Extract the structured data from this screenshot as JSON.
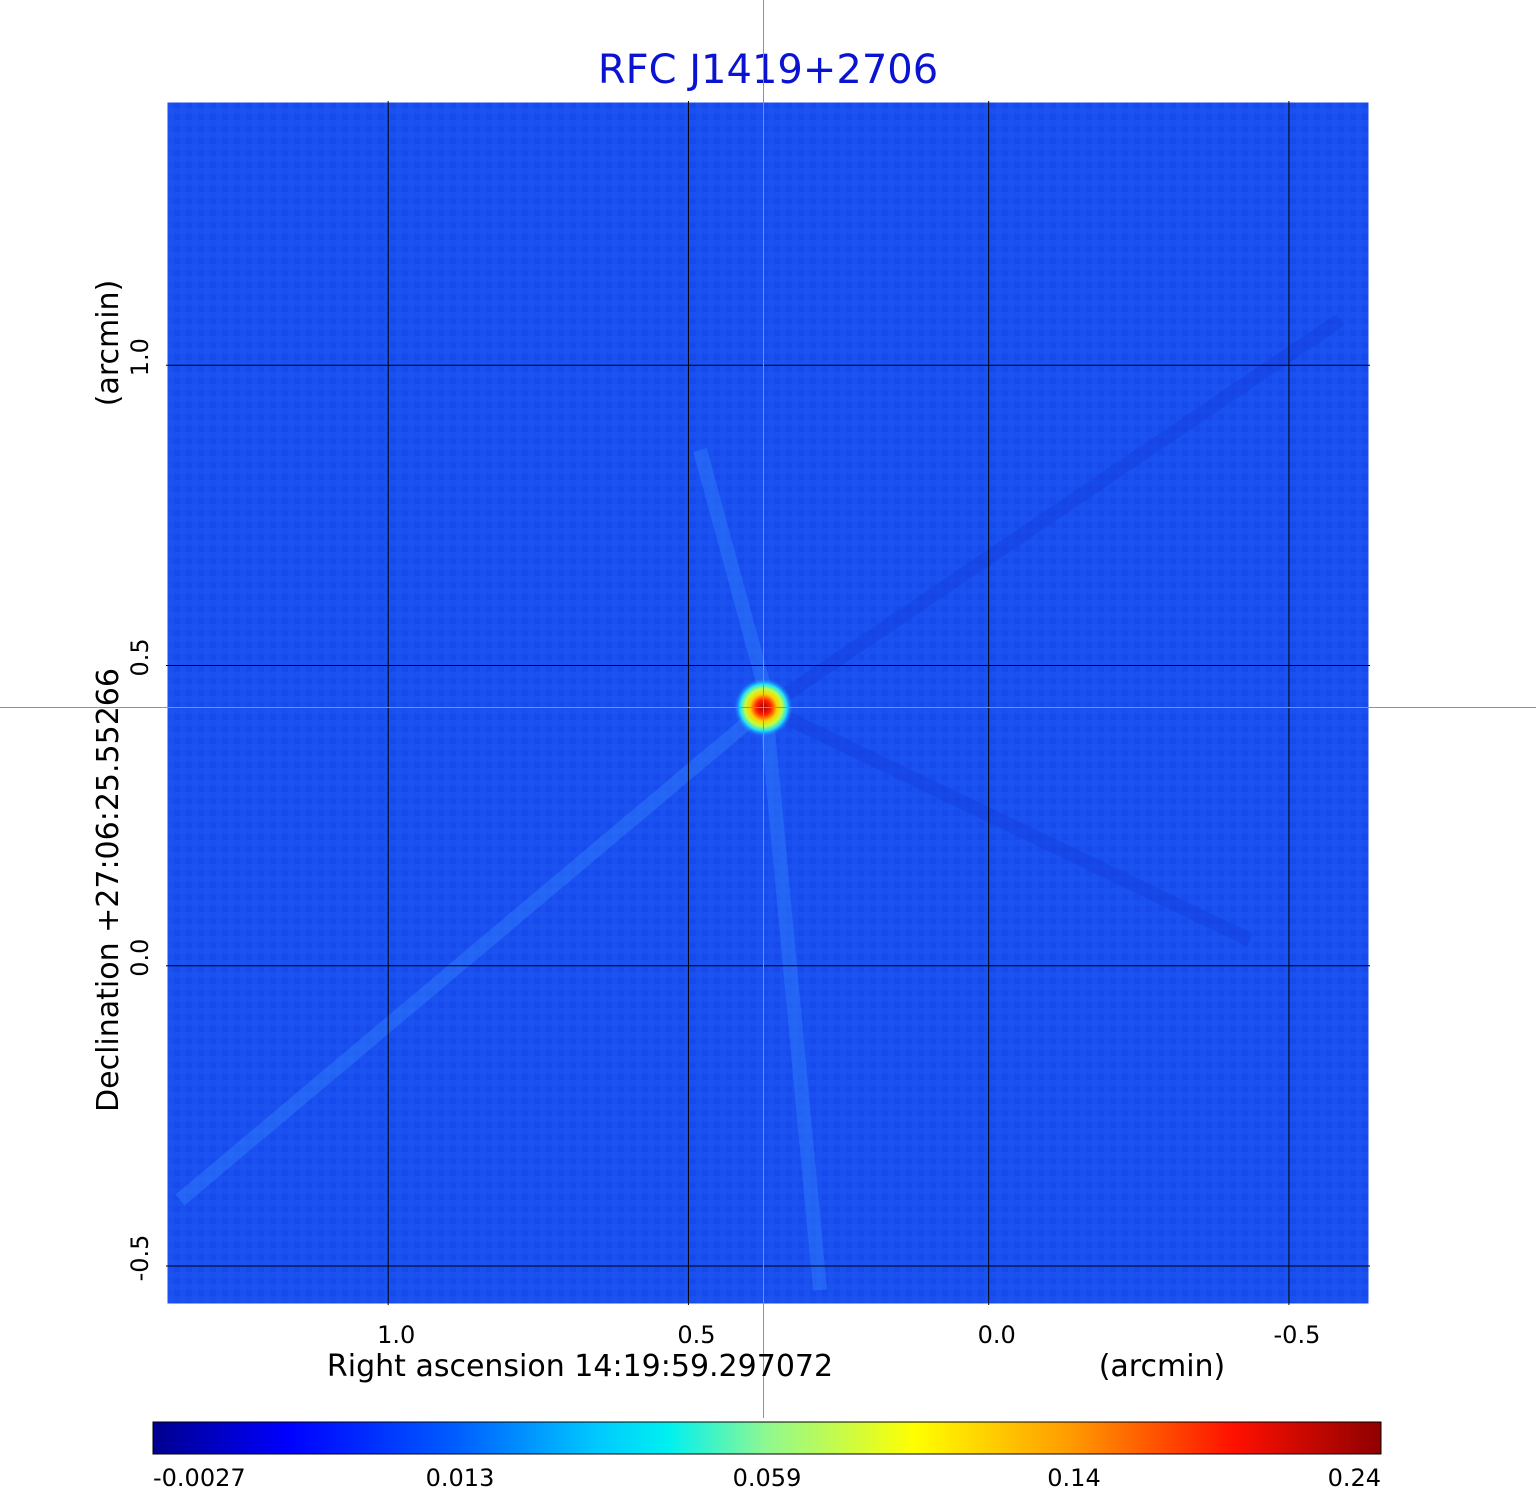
{
  "title": "RFC J1419+2706",
  "x_axis": {
    "label": "Right ascension  14:19:59.297072",
    "unit": "(arcmin)",
    "ticks": [
      "1.0",
      "0.5",
      "0.0",
      "-0.5"
    ],
    "range_arcmin": [
      1.37,
      -0.635
    ]
  },
  "y_axis": {
    "label": "Declination  +27:06:25.55266",
    "unit": "(arcmin)",
    "ticks": [
      "1.0",
      "0.5",
      "0.0",
      "-0.5"
    ],
    "range_arcmin": [
      -0.565,
      1.44
    ]
  },
  "colorbar": {
    "colormap": "jet",
    "ticks": [
      "-0.0027",
      "0.013",
      "0.059",
      "0.14",
      "0.24"
    ],
    "min": -0.0027,
    "max": 0.24
  },
  "source": {
    "ra_offset_arcmin": 0.375,
    "dec_offset_arcmin": 0.43,
    "peak": 0.24
  },
  "crosshair": {
    "ra_offset_arcmin": 0.375,
    "dec_offset_arcmin": 0.43
  },
  "colors": {
    "title": "#0a14d0",
    "background_map": "#1a50f0",
    "crosshair": "#2ed82e",
    "grid": "#000000"
  }
}
